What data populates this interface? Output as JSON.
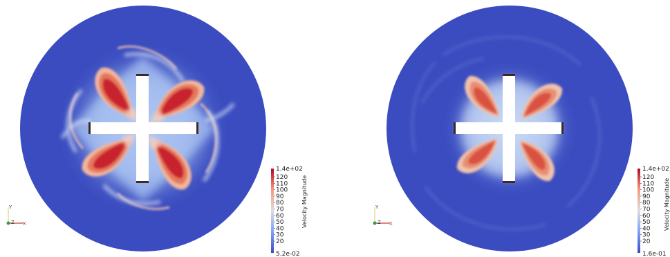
{
  "panels": [
    {
      "id": "left",
      "colorbar": {
        "title": "Velocity Magnitude",
        "max_label": "1.4e+02",
        "min_label": "5.2e-02",
        "ticks": [
          "120",
          "110",
          "100",
          "90",
          "80",
          "70",
          "60",
          "50",
          "40",
          "30",
          "20"
        ]
      },
      "axes": {
        "y": "Y",
        "z": "Z",
        "x": "X"
      }
    },
    {
      "id": "right",
      "colorbar": {
        "title": "Velocity Magnitude",
        "max_label": "1.4e+02",
        "min_label": "1.6e-01",
        "ticks": [
          "120",
          "110",
          "100",
          "90",
          "80",
          "70",
          "60",
          "50",
          "40",
          "30",
          "20"
        ]
      },
      "axes": {
        "y": "Y",
        "z": "Z",
        "x": "X"
      }
    }
  ],
  "colors": {
    "background_blue": "#3b4cc0",
    "mid_white": "#dddddd",
    "high_red": "#b40426"
  }
}
